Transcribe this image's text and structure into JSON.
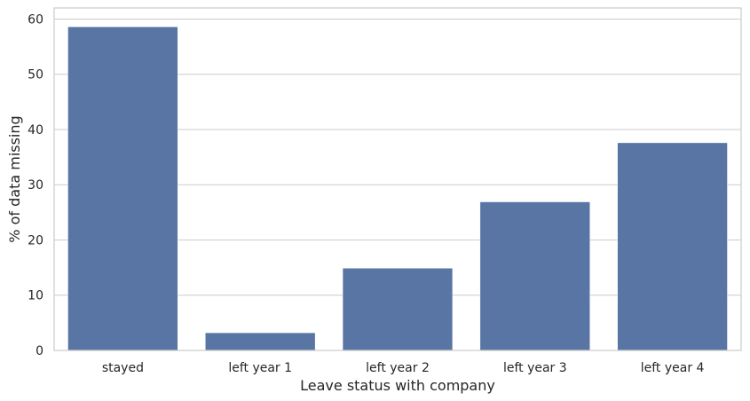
{
  "chart_data": {
    "type": "bar",
    "title": "",
    "xlabel": "Leave status with company",
    "ylabel": "% of data missing",
    "categories": [
      "stayed",
      "left year 1",
      "left year 2",
      "left year 3",
      "left year 4"
    ],
    "values": [
      58.6,
      3.2,
      14.9,
      26.9,
      37.6
    ],
    "ylim": [
      0,
      62
    ],
    "yticks": [
      0,
      10,
      20,
      30,
      40,
      50,
      60
    ],
    "grid": true,
    "bar_color": "#5875a4"
  }
}
